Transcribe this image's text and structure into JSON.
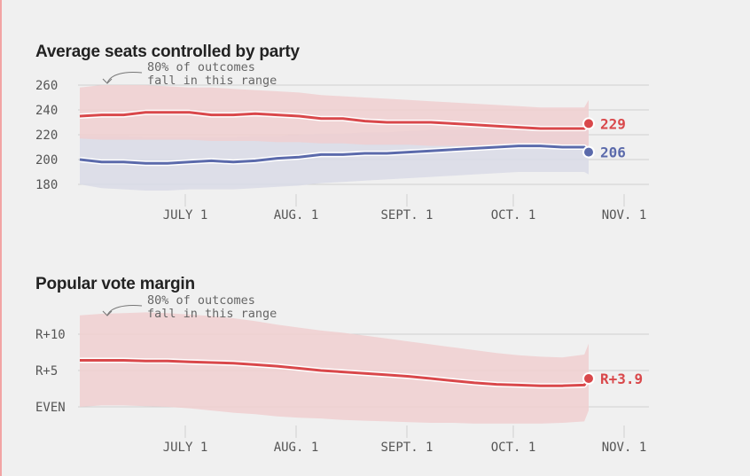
{
  "colors": {
    "rep": "#d9484b",
    "dem": "#5b6aab",
    "rep_band": "#f0cfd0",
    "dem_band": "#d9dae6",
    "grid": "#cfcfcf",
    "text": "#555555"
  },
  "chart_data": [
    {
      "type": "line",
      "title": "Average seats controlled by party",
      "annotation": [
        "80% of outcomes",
        "fall in this range"
      ],
      "x_ticks": [
        "JULY 1",
        "AUG. 1",
        "SEPT. 1",
        "OCT. 1",
        "NOV. 1"
      ],
      "y_ticks": [
        "260",
        "240",
        "220",
        "200",
        "180"
      ],
      "y_tick_values": [
        260,
        240,
        220,
        200,
        180
      ],
      "ylim": [
        173,
        260
      ],
      "series": [
        {
          "name": "rep",
          "final_label": "229",
          "x": [
            0,
            5,
            10,
            15,
            20,
            25,
            30,
            35,
            40,
            45,
            50,
            55,
            60,
            65,
            70,
            75,
            80,
            85,
            90,
            95,
            100,
            105,
            110,
            115,
            116
          ],
          "y": [
            235,
            236,
            236,
            238,
            238,
            238,
            236,
            236,
            237,
            236,
            235,
            233,
            233,
            231,
            230,
            230,
            230,
            229,
            228,
            227,
            226,
            225,
            225,
            225,
            229
          ],
          "low": [
            217,
            216,
            216,
            216,
            216,
            216,
            215,
            215,
            215,
            214,
            214,
            213,
            213,
            212,
            212,
            212,
            211,
            211,
            211,
            210,
            210,
            210,
            210,
            210,
            204
          ],
          "high": [
            258,
            260,
            260,
            260,
            259,
            258,
            258,
            257,
            256,
            255,
            254,
            252,
            251,
            250,
            249,
            248,
            247,
            246,
            245,
            244,
            243,
            242,
            242,
            242,
            248
          ]
        },
        {
          "name": "dem",
          "final_label": "206",
          "x": [
            0,
            5,
            10,
            15,
            20,
            25,
            30,
            35,
            40,
            45,
            50,
            55,
            60,
            65,
            70,
            75,
            80,
            85,
            90,
            95,
            100,
            105,
            110,
            115,
            116
          ],
          "y": [
            200,
            198,
            198,
            197,
            197,
            198,
            199,
            198,
            199,
            201,
            202,
            204,
            204,
            205,
            205,
            206,
            207,
            208,
            209,
            210,
            211,
            211,
            210,
            210,
            206
          ],
          "low": [
            180,
            177,
            176,
            175,
            175,
            176,
            176,
            176,
            177,
            178,
            179,
            181,
            182,
            183,
            184,
            185,
            186,
            187,
            188,
            189,
            190,
            190,
            190,
            190,
            188
          ],
          "high": [
            219,
            219,
            219,
            218,
            218,
            218,
            218,
            218,
            219,
            219,
            220,
            221,
            221,
            222,
            222,
            223,
            224,
            224,
            225,
            226,
            226,
            226,
            226,
            226,
            226
          ]
        }
      ]
    },
    {
      "type": "line",
      "title": "Popular vote margin",
      "annotation": [
        "80% of outcomes",
        "fall in this range"
      ],
      "x_ticks": [
        "JULY 1",
        "AUG. 1",
        "SEPT. 1",
        "OCT. 1",
        "NOV. 1"
      ],
      "y_ticks": [
        "R+10",
        "R+5",
        "EVEN"
      ],
      "y_tick_values": [
        10,
        5,
        0
      ],
      "ylim": [
        -2.5,
        14.5
      ],
      "series": [
        {
          "name": "rep",
          "final_label": "R+3.9",
          "x": [
            0,
            5,
            10,
            15,
            20,
            25,
            30,
            35,
            40,
            45,
            50,
            55,
            60,
            65,
            70,
            75,
            80,
            85,
            90,
            95,
            100,
            105,
            110,
            115,
            116
          ],
          "y": [
            6.4,
            6.4,
            6.4,
            6.3,
            6.3,
            6.2,
            6.1,
            6.0,
            5.8,
            5.6,
            5.3,
            5.0,
            4.8,
            4.6,
            4.4,
            4.2,
            3.9,
            3.6,
            3.3,
            3.1,
            3.0,
            2.9,
            2.9,
            3.0,
            3.9
          ],
          "low": [
            0,
            0.2,
            0.2,
            0.1,
            0,
            -0.2,
            -0.5,
            -0.8,
            -1.0,
            -1.3,
            -1.5,
            -1.6,
            -1.8,
            -1.9,
            -2.0,
            -2.1,
            -2.2,
            -2.2,
            -2.3,
            -2.3,
            -2.3,
            -2.3,
            -2.2,
            -2.0,
            -0.5
          ],
          "high": [
            12.6,
            12.8,
            12.9,
            13.0,
            12.9,
            12.7,
            12.5,
            12.2,
            11.8,
            11.3,
            10.9,
            10.5,
            10.2,
            9.8,
            9.4,
            9.0,
            8.6,
            8.2,
            7.8,
            7.4,
            7.1,
            6.9,
            6.8,
            7.2,
            8.7
          ]
        }
      ]
    }
  ]
}
